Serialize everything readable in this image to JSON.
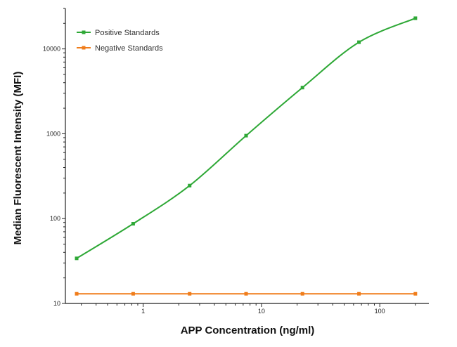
{
  "chart_data": {
    "type": "line",
    "xlabel": "APP Concentration (ng/ml)",
    "ylabel": "Median  Fluorescent Intensity  (MFI)",
    "xscale": "log",
    "yscale": "log",
    "xlim": [
      0.22,
      260
    ],
    "ylim": [
      10,
      30000
    ],
    "xticks": [
      1,
      10,
      100
    ],
    "xtick_labels": [
      "1",
      "10",
      "100"
    ],
    "yticks": [
      10,
      100,
      1000,
      10000
    ],
    "ytick_labels": [
      "10",
      "100",
      "1000",
      "10000"
    ],
    "grid": false,
    "legend_position": "top-left",
    "series": [
      {
        "name": "Positive Standards",
        "color": "#2ea836",
        "x": [
          0.274,
          0.823,
          2.47,
          7.41,
          22.2,
          66.7,
          200
        ],
        "y": [
          34,
          87,
          245,
          950,
          3500,
          12000,
          23000
        ]
      },
      {
        "name": "Negative Standards",
        "color": "#f07d1b",
        "x": [
          0.274,
          0.823,
          2.47,
          7.41,
          22.2,
          66.7,
          200
        ],
        "y": [
          13,
          13,
          13,
          13,
          13,
          13,
          13
        ]
      }
    ]
  }
}
